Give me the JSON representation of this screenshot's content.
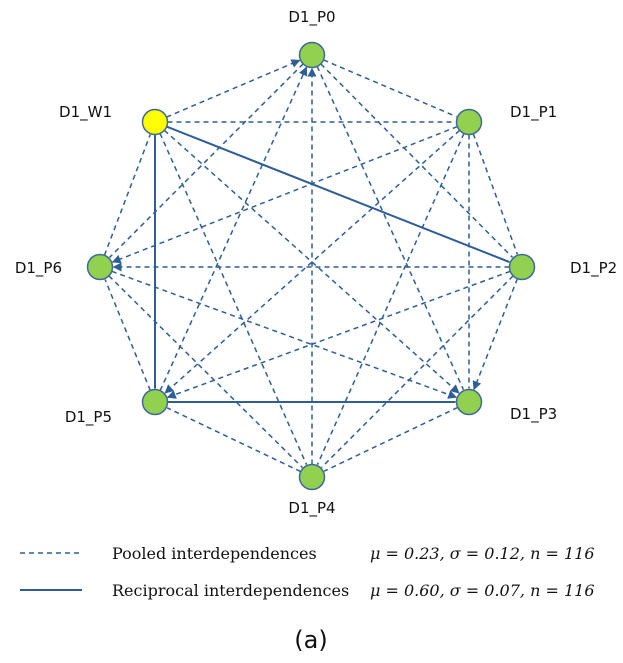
{
  "colors": {
    "edge": "#2f5d96",
    "node_default": "#92d050",
    "node_highlight": "#ffff00",
    "node_stroke": "#3e6a98"
  },
  "nodes": [
    {
      "id": "D1_P0",
      "label": "D1_P0",
      "highlight": false
    },
    {
      "id": "D1_P1",
      "label": "D1_P1",
      "highlight": false
    },
    {
      "id": "D1_P2",
      "label": "D1_P2",
      "highlight": false
    },
    {
      "id": "D1_P3",
      "label": "D1_P3",
      "highlight": false
    },
    {
      "id": "D1_P4",
      "label": "D1_P4",
      "highlight": false
    },
    {
      "id": "D1_P5",
      "label": "D1_P5",
      "highlight": false
    },
    {
      "id": "D1_P6",
      "label": "D1_P6",
      "highlight": false
    },
    {
      "id": "D1_W1",
      "label": "D1_W1",
      "highlight": true
    }
  ],
  "edges": [
    {
      "from": "D1_W1",
      "to": "D1_P0",
      "type": "pooled",
      "arrow": true
    },
    {
      "from": "D1_P0",
      "to": "D1_P1",
      "type": "pooled",
      "arrow": false
    },
    {
      "from": "D1_P1",
      "to": "D1_P2",
      "type": "pooled",
      "arrow": false
    },
    {
      "from": "D1_P2",
      "to": "D1_P3",
      "type": "pooled",
      "arrow": true
    },
    {
      "from": "D1_P3",
      "to": "D1_P4",
      "type": "pooled",
      "arrow": false
    },
    {
      "from": "D1_P4",
      "to": "D1_P5",
      "type": "pooled",
      "arrow": false
    },
    {
      "from": "D1_P5",
      "to": "D1_P6",
      "type": "pooled",
      "arrow": false
    },
    {
      "from": "D1_P6",
      "to": "D1_W1",
      "type": "pooled",
      "arrow": false
    },
    {
      "from": "D1_W1",
      "to": "D1_P1",
      "type": "pooled",
      "arrow": false
    },
    {
      "from": "D1_W1",
      "to": "D1_P3",
      "type": "pooled",
      "arrow": true
    },
    {
      "from": "D1_W1",
      "to": "D1_P4",
      "type": "pooled",
      "arrow": false
    },
    {
      "from": "D1_P0",
      "to": "D1_P2",
      "type": "pooled",
      "arrow": false
    },
    {
      "from": "D1_P0",
      "to": "D1_P3",
      "type": "pooled",
      "arrow": false
    },
    {
      "from": "D1_P4",
      "to": "D1_P0",
      "type": "pooled",
      "arrow": true
    },
    {
      "from": "D1_P5",
      "to": "D1_P0",
      "type": "pooled",
      "arrow": true
    },
    {
      "from": "D1_P0",
      "to": "D1_P6",
      "type": "pooled",
      "arrow": false
    },
    {
      "from": "D1_P1",
      "to": "D1_P3",
      "type": "pooled",
      "arrow": false
    },
    {
      "from": "D1_P1",
      "to": "D1_P4",
      "type": "pooled",
      "arrow": false
    },
    {
      "from": "D1_P1",
      "to": "D1_P5",
      "type": "pooled",
      "arrow": true
    },
    {
      "from": "D1_P1",
      "to": "D1_P6",
      "type": "pooled",
      "arrow": true
    },
    {
      "from": "D1_P2",
      "to": "D1_P4",
      "type": "pooled",
      "arrow": false
    },
    {
      "from": "D1_P2",
      "to": "D1_P5",
      "type": "pooled",
      "arrow": true
    },
    {
      "from": "D1_P2",
      "to": "D1_P6",
      "type": "pooled",
      "arrow": true
    },
    {
      "from": "D1_P6",
      "to": "D1_P3",
      "type": "pooled",
      "arrow": true
    },
    {
      "from": "D1_P6",
      "to": "D1_P4",
      "type": "pooled",
      "arrow": false
    },
    {
      "from": "D1_W1",
      "to": "D1_P2",
      "type": "reciprocal",
      "arrow": false
    },
    {
      "from": "D1_W1",
      "to": "D1_P5",
      "type": "reciprocal",
      "arrow": false
    },
    {
      "from": "D1_P5",
      "to": "D1_P3",
      "type": "reciprocal",
      "arrow": false
    }
  ],
  "legend": [
    {
      "type": "pooled",
      "label": "Pooled interdependences",
      "stats": "μ = 0.23, σ = 0.12, n = 116"
    },
    {
      "type": "reciprocal",
      "label": "Reciprocal interdependences",
      "stats": "μ = 0.60, σ = 0.07, n = 116"
    }
  ],
  "caption": "(a)"
}
